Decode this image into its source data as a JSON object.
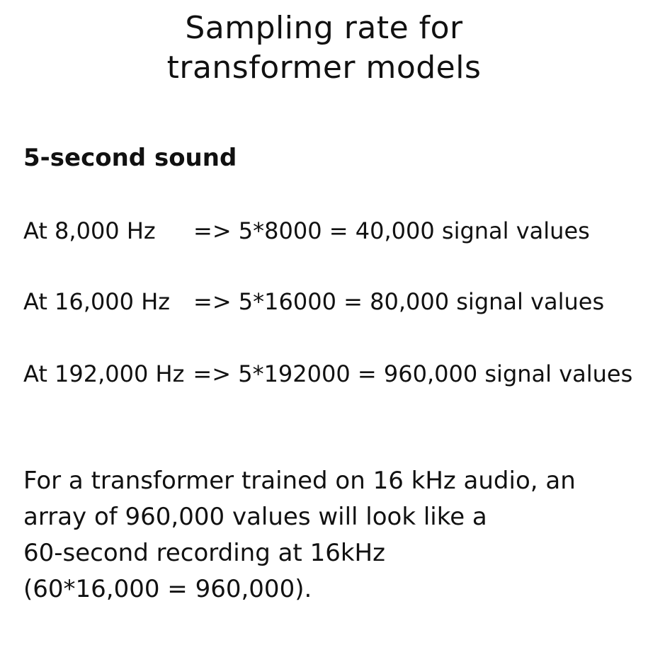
{
  "title": {
    "line1": "Sampling rate for",
    "line2": "transformer models"
  },
  "subheading": "5-second sound",
  "rows": [
    {
      "label": "At 8,000 Hz",
      "calc": "=> 5*8000 = 40,000 signal values"
    },
    {
      "label": "At 16,000 Hz",
      "calc": "=> 5*16000 = 80,000 signal values"
    },
    {
      "label": "At 192,000 Hz",
      "calc": "=> 5*192000 = 960,000 signal values"
    }
  ],
  "paragraph": {
    "lines": [
      "For a transformer trained on 16 kHz audio, an",
      "array of 960,000 values will look like a",
      "60-second recording at 16kHz",
      "(60*16,000 = 960,000)."
    ]
  }
}
